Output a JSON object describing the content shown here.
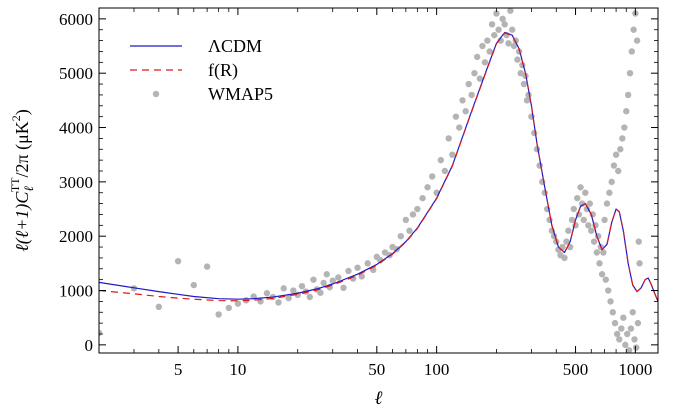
{
  "chart_data": {
    "type": "line",
    "title": "",
    "xlabel": "ℓ",
    "ylabel": "ℓ(ℓ+1)CℓTT/2π (μK²)",
    "x_scale": "log",
    "xlim": [
      2,
      1300
    ],
    "ylim": [
      -150,
      6200
    ],
    "grid": false,
    "legend_position": "top-left",
    "x_ticks": [
      5,
      10,
      50,
      100,
      500,
      1000
    ],
    "y_ticks": [
      0,
      1000,
      2000,
      3000,
      4000,
      5000,
      6000
    ],
    "series": [
      {
        "name": "ΛCDM",
        "style": "solid",
        "color": "#1a1acc",
        "points": [
          [
            2,
            1150
          ],
          [
            3,
            1050
          ],
          [
            4,
            980
          ],
          [
            5,
            930
          ],
          [
            6,
            890
          ],
          [
            8,
            850
          ],
          [
            10,
            840
          ],
          [
            12,
            850
          ],
          [
            15,
            880
          ],
          [
            20,
            950
          ],
          [
            25,
            1030
          ],
          [
            30,
            1120
          ],
          [
            40,
            1300
          ],
          [
            50,
            1480
          ],
          [
            60,
            1680
          ],
          [
            70,
            1900
          ],
          [
            80,
            2150
          ],
          [
            100,
            2700
          ],
          [
            120,
            3300
          ],
          [
            150,
            4300
          ],
          [
            180,
            5100
          ],
          [
            200,
            5550
          ],
          [
            220,
            5750
          ],
          [
            240,
            5700
          ],
          [
            260,
            5450
          ],
          [
            280,
            5000
          ],
          [
            300,
            4400
          ],
          [
            320,
            3700
          ],
          [
            350,
            2900
          ],
          [
            380,
            2200
          ],
          [
            410,
            1800
          ],
          [
            440,
            1700
          ],
          [
            470,
            1900
          ],
          [
            500,
            2300
          ],
          [
            530,
            2550
          ],
          [
            560,
            2600
          ],
          [
            600,
            2400
          ],
          [
            640,
            2000
          ],
          [
            680,
            1750
          ],
          [
            720,
            1850
          ],
          [
            760,
            2250
          ],
          [
            800,
            2500
          ],
          [
            830,
            2450
          ],
          [
            870,
            2100
          ],
          [
            920,
            1500
          ],
          [
            970,
            1100
          ],
          [
            1020,
            980
          ],
          [
            1070,
            1050
          ],
          [
            1120,
            1200
          ],
          [
            1160,
            1230
          ],
          [
            1200,
            1120
          ],
          [
            1250,
            950
          ],
          [
            1300,
            800
          ]
        ]
      },
      {
        "name": "f(R)",
        "style": "dashed",
        "color": "#e01818",
        "points": [
          [
            2,
            1000
          ],
          [
            3,
            940
          ],
          [
            4,
            890
          ],
          [
            5,
            860
          ],
          [
            6,
            840
          ],
          [
            8,
            815
          ],
          [
            10,
            810
          ],
          [
            12,
            820
          ],
          [
            15,
            855
          ],
          [
            20,
            930
          ],
          [
            25,
            1010
          ],
          [
            30,
            1100
          ],
          [
            40,
            1280
          ],
          [
            50,
            1465
          ],
          [
            60,
            1670
          ],
          [
            70,
            1890
          ],
          [
            80,
            2140
          ],
          [
            100,
            2690
          ],
          [
            120,
            3290
          ],
          [
            150,
            4290
          ],
          [
            180,
            5090
          ],
          [
            200,
            5540
          ],
          [
            220,
            5740
          ],
          [
            240,
            5695
          ],
          [
            260,
            5445
          ],
          [
            280,
            4995
          ],
          [
            300,
            4395
          ],
          [
            320,
            3700
          ],
          [
            350,
            2900
          ],
          [
            380,
            2200
          ],
          [
            410,
            1800
          ],
          [
            440,
            1700
          ],
          [
            470,
            1900
          ],
          [
            500,
            2300
          ],
          [
            530,
            2550
          ],
          [
            560,
            2600
          ],
          [
            600,
            2400
          ],
          [
            640,
            2000
          ],
          [
            680,
            1750
          ],
          [
            720,
            1850
          ],
          [
            760,
            2250
          ],
          [
            800,
            2500
          ],
          [
            830,
            2450
          ],
          [
            870,
            2100
          ],
          [
            920,
            1500
          ],
          [
            970,
            1100
          ],
          [
            1020,
            980
          ],
          [
            1070,
            1050
          ],
          [
            1120,
            1200
          ],
          [
            1160,
            1230
          ],
          [
            1200,
            1120
          ],
          [
            1250,
            950
          ],
          [
            1300,
            800
          ]
        ]
      },
      {
        "name": "WMAP5",
        "style": "points",
        "color": "#b4b4b4",
        "points": [
          [
            2,
            220
          ],
          [
            3,
            1040
          ],
          [
            4,
            700
          ],
          [
            5,
            1540
          ],
          [
            6,
            1100
          ],
          [
            7,
            1440
          ],
          [
            8,
            560
          ],
          [
            9,
            680
          ],
          [
            10,
            760
          ],
          [
            11,
            820
          ],
          [
            12,
            890
          ],
          [
            13,
            800
          ],
          [
            14,
            950
          ],
          [
            15,
            880
          ],
          [
            16,
            780
          ],
          [
            17,
            1040
          ],
          [
            18,
            860
          ],
          [
            19,
            1000
          ],
          [
            20,
            920
          ],
          [
            21,
            1080
          ],
          [
            22,
            980
          ],
          [
            23,
            880
          ],
          [
            24,
            1200
          ],
          [
            25,
            1020
          ],
          [
            26,
            960
          ],
          [
            27,
            1140
          ],
          [
            28,
            1300
          ],
          [
            29,
            1060
          ],
          [
            30,
            1180
          ],
          [
            32,
            1240
          ],
          [
            34,
            1050
          ],
          [
            36,
            1360
          ],
          [
            38,
            1220
          ],
          [
            40,
            1420
          ],
          [
            42,
            1260
          ],
          [
            45,
            1500
          ],
          [
            48,
            1380
          ],
          [
            50,
            1620
          ],
          [
            52,
            1560
          ],
          [
            55,
            1700
          ],
          [
            58,
            1650
          ],
          [
            60,
            1800
          ],
          [
            63,
            1760
          ],
          [
            66,
            2000
          ],
          [
            70,
            2300
          ],
          [
            73,
            2100
          ],
          [
            76,
            2400
          ],
          [
            80,
            2500
          ],
          [
            85,
            2700
          ],
          [
            90,
            2900
          ],
          [
            95,
            3100
          ],
          [
            100,
            2800
          ],
          [
            105,
            3400
          ],
          [
            110,
            3200
          ],
          [
            115,
            3800
          ],
          [
            120,
            3500
          ],
          [
            125,
            4200
          ],
          [
            130,
            4000
          ],
          [
            135,
            4500
          ],
          [
            140,
            4300
          ],
          [
            145,
            4800
          ],
          [
            150,
            4600
          ],
          [
            155,
            5000
          ],
          [
            160,
            5300
          ],
          [
            165,
            4900
          ],
          [
            170,
            5500
          ],
          [
            175,
            5200
          ],
          [
            180,
            5600
          ],
          [
            185,
            5400
          ],
          [
            190,
            5900
          ],
          [
            195,
            5700
          ],
          [
            200,
            6100
          ],
          [
            205,
            5800
          ],
          [
            210,
            5600
          ],
          [
            215,
            6000
          ],
          [
            220,
            5900
          ],
          [
            225,
            5700
          ],
          [
            230,
            5550
          ],
          [
            235,
            6150
          ],
          [
            240,
            5800
          ],
          [
            245,
            5500
          ],
          [
            250,
            5600
          ],
          [
            255,
            5250
          ],
          [
            260,
            5400
          ],
          [
            265,
            5000
          ],
          [
            270,
            5150
          ],
          [
            275,
            4800
          ],
          [
            280,
            4950
          ],
          [
            285,
            4500
          ],
          [
            290,
            4600
          ],
          [
            300,
            4200
          ],
          [
            310,
            3900
          ],
          [
            320,
            3600
          ],
          [
            330,
            3300
          ],
          [
            340,
            3000
          ],
          [
            350,
            2800
          ],
          [
            360,
            2500
          ],
          [
            370,
            2300
          ],
          [
            380,
            2100
          ],
          [
            390,
            2000
          ],
          [
            400,
            1900
          ],
          [
            410,
            1750
          ],
          [
            420,
            1650
          ],
          [
            430,
            1800
          ],
          [
            440,
            1600
          ],
          [
            450,
            1900
          ],
          [
            460,
            2100
          ],
          [
            470,
            1800
          ],
          [
            480,
            2300
          ],
          [
            490,
            2500
          ],
          [
            500,
            2200
          ],
          [
            510,
            2700
          ],
          [
            520,
            2400
          ],
          [
            530,
            2900
          ],
          [
            540,
            2600
          ],
          [
            550,
            2300
          ],
          [
            560,
            2800
          ],
          [
            570,
            2500
          ],
          [
            580,
            2200
          ],
          [
            590,
            2600
          ],
          [
            600,
            2100
          ],
          [
            610,
            2400
          ],
          [
            620,
            1900
          ],
          [
            630,
            2200
          ],
          [
            640,
            1700
          ],
          [
            650,
            2000
          ],
          [
            660,
            1500
          ],
          [
            670,
            1800
          ],
          [
            680,
            1300
          ],
          [
            690,
            1700
          ],
          [
            700,
            2300
          ],
          [
            710,
            1200
          ],
          [
            720,
            2600
          ],
          [
            730,
            1000
          ],
          [
            740,
            2800
          ],
          [
            750,
            800
          ],
          [
            760,
            3000
          ],
          [
            770,
            600
          ],
          [
            780,
            3300
          ],
          [
            790,
            400
          ],
          [
            800,
            3500
          ],
          [
            810,
            200
          ],
          [
            820,
            3200
          ],
          [
            830,
            100
          ],
          [
            840,
            3600
          ],
          [
            850,
            300
          ],
          [
            860,
            3800
          ],
          [
            870,
            500
          ],
          [
            880,
            4000
          ],
          [
            890,
            0
          ],
          [
            900,
            4300
          ],
          [
            910,
            200
          ],
          [
            920,
            4600
          ],
          [
            930,
            -100
          ],
          [
            940,
            5000
          ],
          [
            950,
            300
          ],
          [
            960,
            5400
          ],
          [
            970,
            600
          ],
          [
            980,
            5800
          ],
          [
            990,
            100
          ],
          [
            1000,
            6100
          ],
          [
            1010,
            -50
          ],
          [
            1020,
            5600
          ],
          [
            1030,
            400
          ],
          [
            1040,
            1900
          ],
          [
            1050,
            1500
          ]
        ]
      }
    ]
  }
}
